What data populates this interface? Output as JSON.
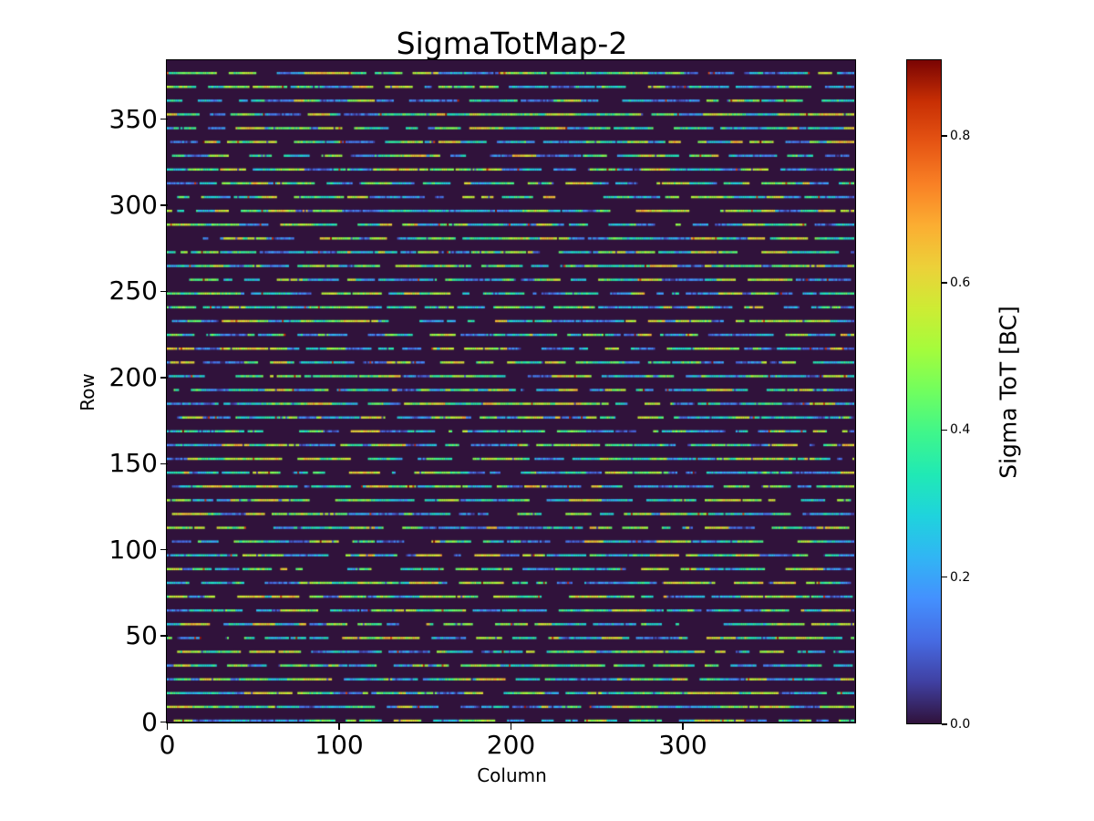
{
  "figure": {
    "background": "#ffffff"
  },
  "chart_data": {
    "type": "heatmap",
    "title": "SigmaTotMap-2",
    "xlabel": "Column",
    "ylabel": "Row",
    "xlim": [
      0,
      400
    ],
    "ylim": [
      0,
      384
    ],
    "x_ticks": [
      0,
      100,
      200,
      300
    ],
    "y_ticks": [
      0,
      50,
      100,
      150,
      200,
      250,
      300,
      350
    ],
    "grid": false,
    "legend": "none",
    "colorbar": {
      "label": "Sigma ToT [BC]",
      "position": "right",
      "tick_values": [
        0.0,
        0.2,
        0.4,
        0.6,
        0.8
      ],
      "tick_labels": [
        "0.0",
        "0.2",
        "0.4",
        "0.6",
        "0.8"
      ],
      "vmin": 0.0,
      "vmax": 0.904
    },
    "colormap": {
      "name": "turbo",
      "background_value_color": "#30123b",
      "stops": [
        [
          0.0,
          "#30123b"
        ],
        [
          0.0625,
          "#4040a2"
        ],
        [
          0.125,
          "#466be3"
        ],
        [
          0.1875,
          "#4490fe"
        ],
        [
          0.25,
          "#31b5f4"
        ],
        [
          0.3125,
          "#1fd3dd"
        ],
        [
          0.375,
          "#20e9b5"
        ],
        [
          0.4375,
          "#3ff68b"
        ],
        [
          0.5,
          "#70fe5f"
        ],
        [
          0.5625,
          "#a4fc3c"
        ],
        [
          0.625,
          "#cdec34"
        ],
        [
          0.6875,
          "#ecd139"
        ],
        [
          0.75,
          "#fbae32"
        ],
        [
          0.8125,
          "#f98125"
        ],
        [
          0.875,
          "#e65514"
        ],
        [
          0.9375,
          "#c82f04"
        ],
        [
          1.0,
          "#7a0403"
        ]
      ]
    },
    "pattern": {
      "description": "Pixel-detector sigma-ToT map: value 0 (dark purple background) everywhere except every 8th row (rows 0,8,...,376), which form 48 horizontal stripes of noisy values with short gaps; typical stripe values 0.1-0.62 BC (blue/cyan/green/yellow), rare dark-red outliers near 0.85-0.9 BC",
      "n_cols": 400,
      "n_rows": 384,
      "row_period": 8,
      "n_stripes": 48,
      "typical_value_range": [
        0.1,
        0.62
      ],
      "outlier_value_range": [
        0.8,
        0.9
      ],
      "outlier_probability": 0.01,
      "gap_probability": 0.27,
      "seed": 20547
    }
  }
}
